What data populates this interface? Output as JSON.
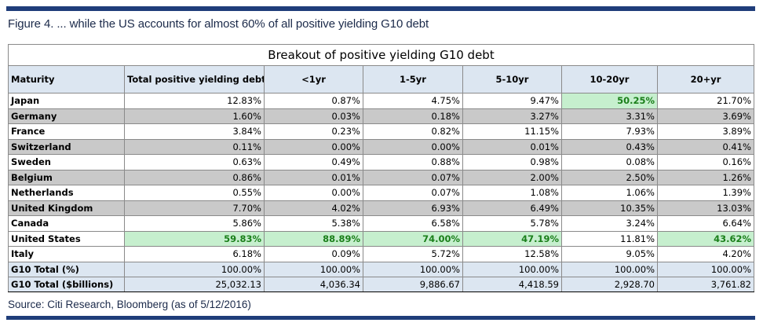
{
  "figure_title": "Figure 4. ... while the US accounts for almost 60% of all positive yielding G10 debt",
  "table_title": "Breakout of positive yielding G10 debt",
  "columns": [
    "Maturity",
    "Total positive yielding debt",
    "<1yr",
    "1-5yr",
    "5-10yr",
    "10-20yr",
    "20+yr"
  ],
  "rows": [
    {
      "country": "Japan",
      "values": [
        "12.83%",
        "0.87%",
        "4.75%",
        "9.47%",
        "50.25%",
        "21.70%"
      ]
    },
    {
      "country": "Germany",
      "values": [
        "1.60%",
        "0.03%",
        "0.18%",
        "3.27%",
        "3.31%",
        "3.69%"
      ]
    },
    {
      "country": "France",
      "values": [
        "3.84%",
        "0.23%",
        "0.82%",
        "11.15%",
        "7.93%",
        "3.89%"
      ]
    },
    {
      "country": "Switzerland",
      "values": [
        "0.11%",
        "0.00%",
        "0.00%",
        "0.01%",
        "0.43%",
        "0.41%"
      ]
    },
    {
      "country": "Sweden",
      "values": [
        "0.63%",
        "0.49%",
        "0.88%",
        "0.98%",
        "0.08%",
        "0.16%"
      ]
    },
    {
      "country": "Belgium",
      "values": [
        "0.86%",
        "0.01%",
        "0.07%",
        "2.00%",
        "2.50%",
        "1.26%"
      ]
    },
    {
      "country": "Netherlands",
      "values": [
        "0.55%",
        "0.00%",
        "0.07%",
        "1.08%",
        "1.06%",
        "1.39%"
      ]
    },
    {
      "country": "United Kingdom",
      "values": [
        "7.70%",
        "4.02%",
        "6.93%",
        "6.49%",
        "10.35%",
        "13.03%"
      ]
    },
    {
      "country": "Canada",
      "values": [
        "5.86%",
        "5.38%",
        "6.58%",
        "5.78%",
        "3.24%",
        "6.64%"
      ]
    },
    {
      "country": "United States",
      "values": [
        "59.83%",
        "88.89%",
        "74.00%",
        "47.19%",
        "11.81%",
        "43.62%"
      ]
    },
    {
      "country": "Italy",
      "values": [
        "6.18%",
        "0.09%",
        "5.72%",
        "12.58%",
        "9.05%",
        "4.20%"
      ]
    }
  ],
  "totals": [
    {
      "label": "G10 Total (%)",
      "values": [
        "100.00%",
        "100.00%",
        "100.00%",
        "100.00%",
        "100.00%",
        "100.00%"
      ]
    },
    {
      "label": "G10 Total ($billions)",
      "values": [
        "25,032.13",
        "4,036.34",
        "9,886.67",
        "4,418.59",
        "2,928.70",
        "3,761.82"
      ]
    }
  ],
  "highlight_color": "#c6efce",
  "highlight_text_color": "#1a7f1a",
  "source": "Source: Citi Research, Bloomberg (as of 5/12/2016)"
}
